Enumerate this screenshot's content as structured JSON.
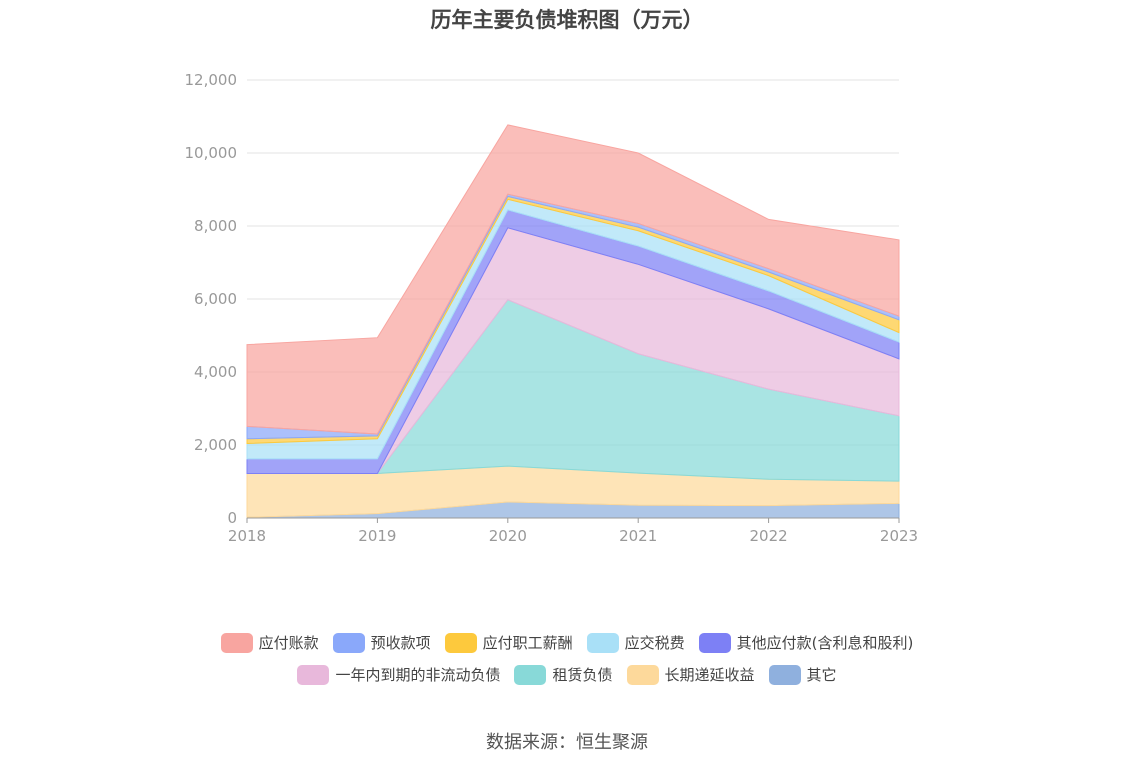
{
  "title": "历年主要负债堆积图（万元）",
  "source": "数据来源：恒生聚源",
  "chart_data": {
    "type": "area",
    "stacked": true,
    "x": [
      "2018",
      "2019",
      "2020",
      "2021",
      "2022",
      "2023"
    ],
    "ylim": [
      0,
      12000
    ],
    "yticks": [
      0,
      2000,
      4000,
      6000,
      8000,
      10000,
      12000
    ],
    "ytick_labels": [
      "0",
      "2,000",
      "4,000",
      "6,000",
      "8,000",
      "10,000",
      "12,000"
    ],
    "grid": true,
    "legend_position": "bottom",
    "series": [
      {
        "name": "其它",
        "color": "#8fb0de",
        "values": [
          20,
          120,
          440,
          350,
          340,
          400
        ]
      },
      {
        "name": "长期递延收益",
        "color": "#fdd99b",
        "values": [
          1200,
          1100,
          980,
          880,
          720,
          610
        ]
      },
      {
        "name": "租赁负债",
        "color": "#88d9d8",
        "values": [
          0,
          0,
          4560,
          3270,
          2470,
          1790
        ]
      },
      {
        "name": "一年内到期的非流动负债",
        "color": "#e8b8db",
        "values": [
          0,
          0,
          1970,
          2450,
          2200,
          1560
        ]
      },
      {
        "name": "其他应付款(含利息和股利)",
        "color": "#7d80f5",
        "values": [
          400,
          400,
          490,
          500,
          490,
          460
        ]
      },
      {
        "name": "应交税费",
        "color": "#a9e0f7",
        "values": [
          420,
          550,
          290,
          420,
          420,
          260
        ]
      },
      {
        "name": "应付职工薪酬",
        "color": "#fdc93d",
        "values": [
          130,
          80,
          80,
          100,
          100,
          350
        ]
      },
      {
        "name": "预收款项",
        "color": "#8aa8fa",
        "values": [
          340,
          50,
          60,
          100,
          90,
          100
        ]
      },
      {
        "name": "应付账款",
        "color": "#f8a5a0",
        "values": [
          2240,
          2640,
          1900,
          1930,
          1350,
          2090
        ]
      }
    ]
  }
}
